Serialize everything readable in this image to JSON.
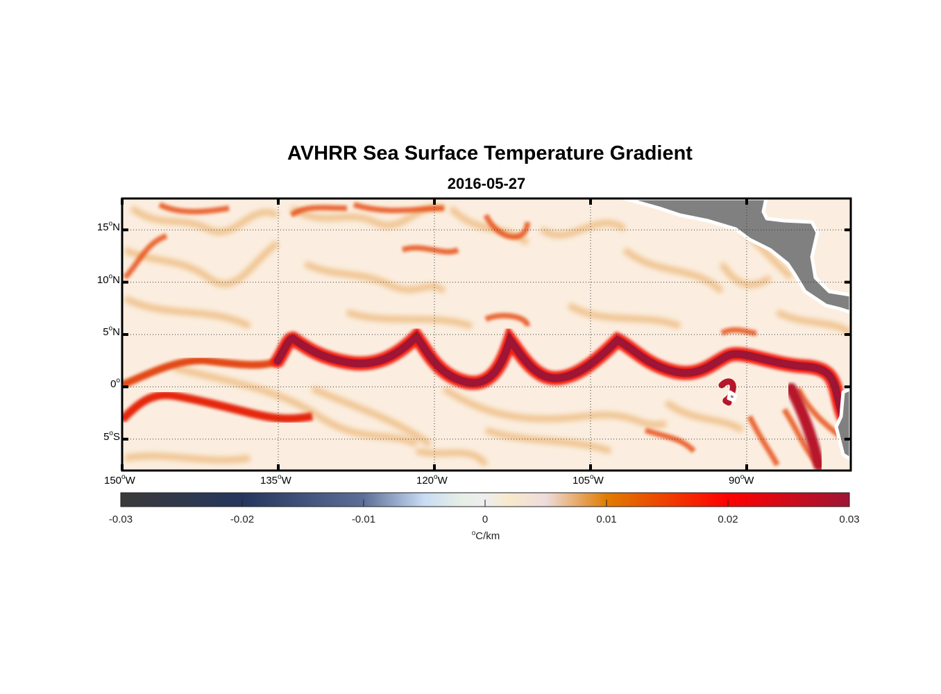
{
  "title": "AVHRR Sea Surface Temperature Gradient",
  "subtitle": "2016-05-27",
  "map": {
    "lon_range": [
      -150,
      -80
    ],
    "lat_range": [
      -8,
      18
    ],
    "lon_ticks": [
      {
        "value": -150,
        "num": "150",
        "hemi": "W"
      },
      {
        "value": -135,
        "num": "135",
        "hemi": "W"
      },
      {
        "value": -120,
        "num": "120",
        "hemi": "W"
      },
      {
        "value": -105,
        "num": "105",
        "hemi": "W"
      },
      {
        "value": -90,
        "num": "90",
        "hemi": "W"
      }
    ],
    "lat_ticks": [
      {
        "value": 15,
        "num": "15",
        "hemi": "N"
      },
      {
        "value": 10,
        "num": "10",
        "hemi": "N"
      },
      {
        "value": 5,
        "num": "5",
        "hemi": "N"
      },
      {
        "value": 0,
        "num": "0",
        "hemi": ""
      },
      {
        "value": -5,
        "num": "5",
        "hemi": "S"
      }
    ],
    "land_color": "#808080",
    "ocean_base_color": "#fbeee0"
  },
  "colorbar": {
    "range": [
      -0.03,
      0.03
    ],
    "ticks": [
      {
        "value": -0.03,
        "label": "-0.03"
      },
      {
        "value": -0.02,
        "label": "-0.02"
      },
      {
        "value": -0.01,
        "label": "-0.01"
      },
      {
        "value": 0,
        "label": "0"
      },
      {
        "value": 0.01,
        "label": "0.01"
      },
      {
        "value": 0.02,
        "label": "0.02"
      },
      {
        "value": 0.03,
        "label": "0.03"
      }
    ],
    "unit_prefix": "o",
    "unit": "C/km",
    "stops": [
      {
        "value": -0.03,
        "color": "#3a3a3a"
      },
      {
        "value": -0.02,
        "color": "#25365e"
      },
      {
        "value": -0.01,
        "color": "#5d6f98"
      },
      {
        "value": -0.005,
        "color": "#c8dcf4"
      },
      {
        "value": -0.002,
        "color": "#e6efe6"
      },
      {
        "value": 0,
        "color": "#eeeeee"
      },
      {
        "value": 0.002,
        "color": "#f8e9cc"
      },
      {
        "value": 0.005,
        "color": "#eddcdc"
      },
      {
        "value": 0.01,
        "color": "#e07c00"
      },
      {
        "value": 0.02,
        "color": "#ff0000"
      },
      {
        "value": 0.03,
        "color": "#9e1535"
      }
    ]
  }
}
